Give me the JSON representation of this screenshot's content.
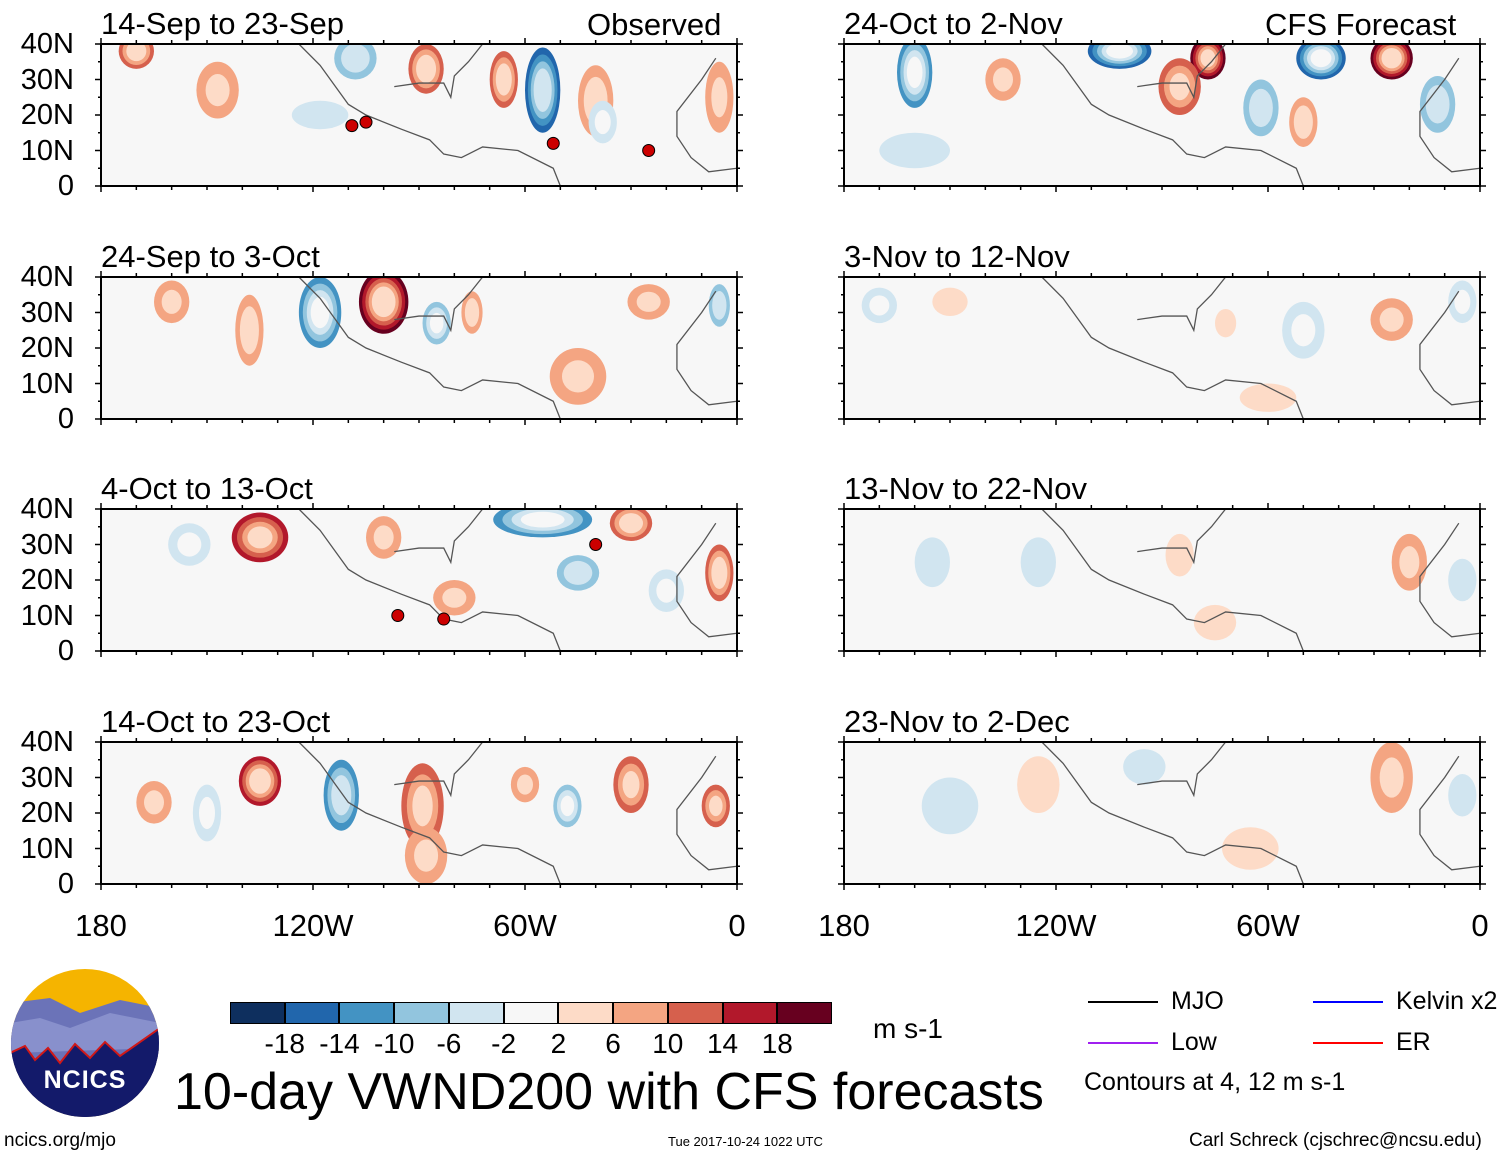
{
  "title": "10-day VWND200 with CFS forecasts",
  "observed_label": "Observed",
  "forecast_label": "CFS Forecast",
  "footer": {
    "left": "ncics.org/mjo",
    "center": "Tue 2017-10-24 1022 UTC",
    "right": "Carl Schreck (cjschrec@ncsu.edu)"
  },
  "logo_text": "NCICS",
  "units": "m s-1",
  "lat_labels": [
    "40N",
    "30N",
    "20N",
    "10N",
    "0"
  ],
  "lon_labels": [
    "180",
    "120W",
    "60W",
    "0"
  ],
  "colorbar": {
    "colors": [
      "#0e2f5e",
      "#2166ac",
      "#4393c3",
      "#92c5de",
      "#d1e5f0",
      "#f7f7f7",
      "#fddbc7",
      "#f4a582",
      "#d6604d",
      "#b2182b",
      "#67001f"
    ],
    "labels": [
      "-18",
      "-14",
      "-10",
      "-6",
      "-2",
      "2",
      "6",
      "10",
      "14",
      "18"
    ]
  },
  "legend": {
    "items": [
      {
        "label": "MJO",
        "color": "#000000"
      },
      {
        "label": "Kelvin x2",
        "color": "#0000ff"
      },
      {
        "label": "Low",
        "color": "#a020f0"
      },
      {
        "label": "ER",
        "color": "#ff0000"
      }
    ],
    "note": "Contours at 4, 12 m s-1"
  },
  "chart_data": {
    "type": "heatmap",
    "variable": "200-hPa meridional wind anomaly",
    "lon_range": [
      -180,
      0
    ],
    "lat_range": [
      0,
      40
    ],
    "panels": [
      {
        "title": "14-Sep to 23-Sep",
        "kind": "observed",
        "features": [
          [
            -55,
            27,
            -16,
            5,
            12
          ],
          [
            -66,
            30,
            12,
            4,
            8
          ],
          [
            -40,
            24,
            8,
            5,
            10
          ],
          [
            -108,
            36,
            -8,
            6,
            6
          ],
          [
            -147,
            27,
            6,
            6,
            8
          ],
          [
            -88,
            33,
            12,
            5,
            7
          ],
          [
            -38,
            18,
            -6,
            4,
            6
          ],
          [
            -5,
            25,
            6,
            4,
            10
          ],
          [
            -170,
            38,
            12,
            5,
            5
          ],
          [
            -118,
            20,
            -4,
            8,
            4
          ]
        ],
        "storms": [
          [
            -109,
            17
          ],
          [
            -105,
            18
          ],
          [
            -52,
            12
          ],
          [
            -25,
            10
          ]
        ]
      },
      {
        "title": "24-Sep to 3-Oct",
        "kind": "observed",
        "features": [
          [
            -100,
            33,
            20,
            7,
            9
          ],
          [
            -118,
            30,
            -14,
            6,
            10
          ],
          [
            -85,
            27,
            -10,
            4,
            6
          ],
          [
            -138,
            25,
            8,
            4,
            10
          ],
          [
            -160,
            33,
            6,
            5,
            6
          ],
          [
            -75,
            30,
            8,
            3,
            6
          ],
          [
            -25,
            33,
            6,
            6,
            5
          ],
          [
            -45,
            12,
            6,
            8,
            8
          ],
          [
            -5,
            32,
            -8,
            3,
            6
          ]
        ],
        "storms": []
      },
      {
        "title": "4-Oct to 13-Oct",
        "kind": "observed",
        "features": [
          [
            -135,
            32,
            14,
            8,
            7
          ],
          [
            -155,
            30,
            -6,
            6,
            6
          ],
          [
            -55,
            37,
            -14,
            14,
            5
          ],
          [
            -30,
            36,
            12,
            6,
            5
          ],
          [
            -45,
            22,
            -8,
            6,
            5
          ],
          [
            -5,
            22,
            12,
            4,
            8
          ],
          [
            -100,
            32,
            6,
            5,
            6
          ],
          [
            -80,
            15,
            6,
            6,
            5
          ],
          [
            -20,
            17,
            -6,
            5,
            6
          ]
        ],
        "storms": [
          [
            -40,
            30
          ],
          [
            -96,
            10
          ],
          [
            -83,
            9
          ]
        ]
      },
      {
        "title": "14-Oct to 23-Oct",
        "kind": "observed",
        "features": [
          [
            -135,
            29,
            16,
            6,
            7
          ],
          [
            -112,
            25,
            -12,
            5,
            10
          ],
          [
            -89,
            22,
            10,
            6,
            12
          ],
          [
            -150,
            20,
            -6,
            4,
            8
          ],
          [
            -60,
            28,
            6,
            4,
            5
          ],
          [
            -48,
            22,
            -10,
            4,
            6
          ],
          [
            -30,
            28,
            10,
            5,
            8
          ],
          [
            -6,
            22,
            10,
            4,
            6
          ],
          [
            -165,
            23,
            6,
            5,
            6
          ],
          [
            -88,
            8,
            6,
            6,
            8
          ]
        ],
        "storms": []
      },
      {
        "title": "24-Oct to 2-Nov",
        "kind": "forecast",
        "features": [
          [
            -160,
            32,
            -14,
            5,
            10
          ],
          [
            -102,
            38,
            -18,
            9,
            5
          ],
          [
            -77,
            36,
            18,
            5,
            6
          ],
          [
            -45,
            36,
            -18,
            7,
            6
          ],
          [
            -25,
            36,
            20,
            6,
            6
          ],
          [
            -85,
            28,
            10,
            6,
            8
          ],
          [
            -62,
            22,
            -8,
            5,
            8
          ],
          [
            -50,
            18,
            8,
            4,
            7
          ],
          [
            -12,
            23,
            -8,
            5,
            8
          ],
          [
            -135,
            30,
            6,
            5,
            6
          ],
          [
            -160,
            10,
            -4,
            10,
            5
          ]
        ],
        "storms": []
      },
      {
        "title": "3-Nov to 12-Nov",
        "kind": "forecast",
        "features": [
          [
            -170,
            32,
            -6,
            5,
            5
          ],
          [
            -150,
            33,
            4,
            5,
            4
          ],
          [
            -72,
            27,
            4,
            3,
            4
          ],
          [
            -50,
            25,
            -6,
            6,
            8
          ],
          [
            -25,
            28,
            6,
            6,
            6
          ],
          [
            -5,
            33,
            -6,
            4,
            6
          ],
          [
            -60,
            6,
            4,
            8,
            4
          ]
        ],
        "storms": []
      },
      {
        "title": "13-Nov to 22-Nov",
        "kind": "forecast",
        "features": [
          [
            -155,
            25,
            -4,
            5,
            7
          ],
          [
            -125,
            25,
            -4,
            5,
            7
          ],
          [
            -85,
            27,
            4,
            4,
            6
          ],
          [
            -20,
            25,
            6,
            5,
            8
          ],
          [
            -5,
            20,
            -4,
            4,
            6
          ],
          [
            -75,
            8,
            4,
            6,
            5
          ]
        ],
        "storms": []
      },
      {
        "title": "23-Nov to 2-Dec",
        "kind": "forecast",
        "features": [
          [
            -150,
            22,
            -4,
            8,
            8
          ],
          [
            -125,
            28,
            4,
            6,
            8
          ],
          [
            -95,
            33,
            -4,
            6,
            5
          ],
          [
            -25,
            30,
            6,
            6,
            10
          ],
          [
            -65,
            10,
            4,
            8,
            6
          ],
          [
            -5,
            25,
            -4,
            4,
            6
          ]
        ],
        "storms": []
      }
    ]
  }
}
